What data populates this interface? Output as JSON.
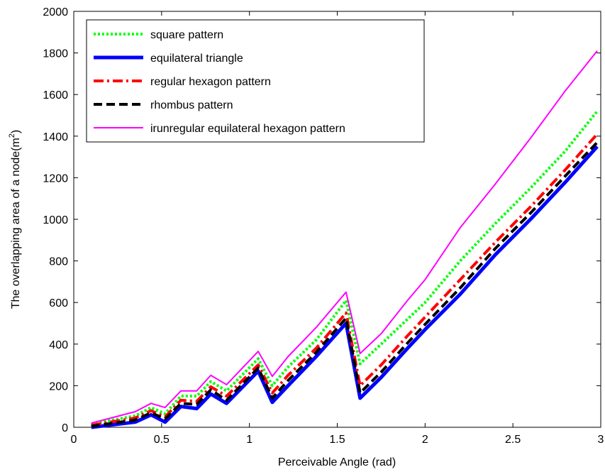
{
  "chart_data": {
    "type": "line",
    "title": "",
    "xlabel": "Perceivable Angle (rad)",
    "ylabel": "The overlapping area of a node(m",
    "ylabel_superscript": "2",
    "ylabel_close": ")",
    "xlim": [
      0,
      3
    ],
    "ylim": [
      0,
      2000
    ],
    "xticks": [
      0,
      0.5,
      1,
      1.5,
      2,
      2.5,
      3
    ],
    "xtick_labels": [
      "0",
      "0.5",
      "1",
      "1.5",
      "2",
      "2.5",
      "3"
    ],
    "yticks": [
      0,
      200,
      400,
      600,
      800,
      1000,
      1200,
      1400,
      1600,
      1800,
      2000
    ],
    "ytick_labels": [
      "0",
      "200",
      "400",
      "600",
      "800",
      "1000",
      "1200",
      "1400",
      "1600",
      "1800",
      "2000"
    ],
    "grid": false,
    "legend_position": "top-left",
    "x": [
      0.1,
      0.35,
      0.44,
      0.52,
      0.61,
      0.7,
      0.78,
      0.87,
      1.05,
      1.13,
      1.22,
      1.38,
      1.55,
      1.63,
      1.75,
      1.9,
      2.0,
      2.2,
      2.4,
      2.6,
      2.8,
      2.98
    ],
    "series": [
      {
        "name": "square pattern",
        "color": "#00ff00",
        "style": "dotted",
        "values": [
          15,
          55,
          95,
          65,
          150,
          150,
          220,
          175,
          330,
          200,
          290,
          420,
          610,
          305,
          400,
          520,
          600,
          800,
          980,
          1150,
          1330,
          1520
        ]
      },
      {
        "name": "equilateral triangle",
        "color": "#0000ff",
        "style": "solid-thick",
        "values": [
          0,
          25,
          60,
          25,
          100,
          90,
          160,
          115,
          270,
          120,
          200,
          340,
          500,
          140,
          240,
          380,
          470,
          640,
          830,
          1000,
          1180,
          1350
        ]
      },
      {
        "name": "regular hexagon pattern",
        "color": "#ff0000",
        "style": "dashdot",
        "values": [
          10,
          45,
          80,
          50,
          130,
          125,
          195,
          150,
          300,
          165,
          250,
          380,
          550,
          200,
          300,
          440,
          530,
          710,
          890,
          1060,
          1240,
          1410
        ]
      },
      {
        "name": "rhombus pattern",
        "color": "#000000",
        "style": "dashed",
        "values": [
          5,
          35,
          70,
          40,
          115,
          110,
          180,
          130,
          285,
          140,
          225,
          360,
          525,
          165,
          265,
          405,
          495,
          670,
          860,
          1030,
          1210,
          1370
        ]
      },
      {
        "name": "irunregular equilateral hexagon pattern",
        "color": "#ff00ff",
        "style": "solid",
        "values": [
          20,
          75,
          115,
          95,
          175,
          175,
          250,
          205,
          365,
          245,
          340,
          480,
          650,
          355,
          450,
          610,
          710,
          960,
          1170,
          1390,
          1620,
          1810
        ]
      }
    ]
  }
}
